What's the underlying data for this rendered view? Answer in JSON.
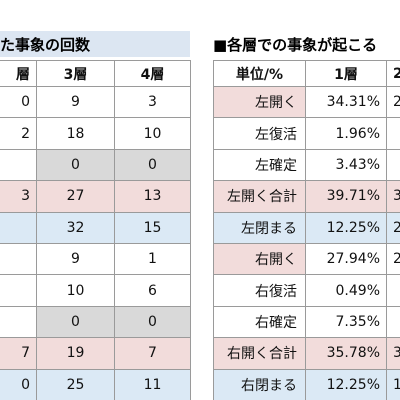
{
  "left_table": {
    "title": "た事象の回数",
    "headers": [
      "層",
      "3層",
      "4層"
    ],
    "rows": [
      [
        "0",
        "9",
        "3"
      ],
      [
        "2",
        "18",
        "10"
      ],
      [
        null,
        "0",
        "0"
      ],
      [
        "3",
        "27",
        "13"
      ],
      [
        null,
        "32",
        "15"
      ],
      [
        null,
        "9",
        "1"
      ],
      [
        null,
        "10",
        "6"
      ],
      [
        null,
        "0",
        "0"
      ],
      [
        "7",
        "19",
        "7"
      ],
      [
        "0",
        "25",
        "11"
      ]
    ]
  },
  "right_table": {
    "title": "■各層での事象が起こる",
    "headers": [
      "単位/%",
      "1層",
      "2"
    ],
    "rows": [
      [
        "左開く",
        "34.31%",
        "2"
      ],
      [
        "左復活",
        "1.96%",
        null
      ],
      [
        "左確定",
        "3.43%",
        null
      ],
      [
        "左開く合計",
        "39.71%",
        "3"
      ],
      [
        "左閉まる",
        "12.25%",
        "2"
      ],
      [
        "右開く",
        "27.94%",
        "2"
      ],
      [
        "右復活",
        "0.49%",
        null
      ],
      [
        "右確定",
        "7.35%",
        null
      ],
      [
        "右開く合計",
        "35.78%",
        "3"
      ],
      [
        "右閉まる",
        "12.25%",
        "1"
      ]
    ]
  }
}
